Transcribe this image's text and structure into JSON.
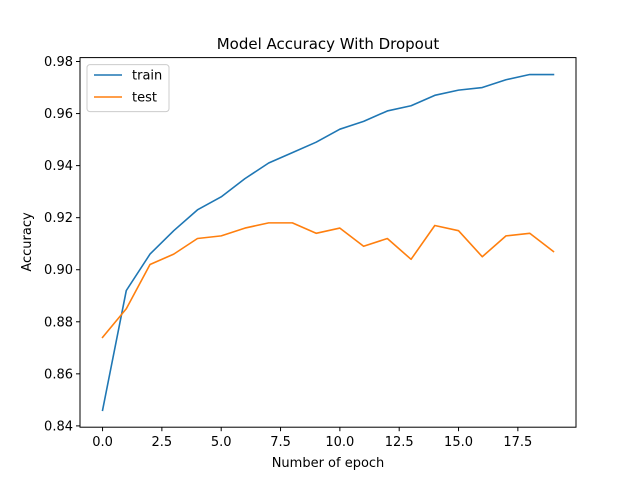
{
  "chart_data": {
    "type": "line",
    "title": "Model Accuracy With Dropout",
    "xlabel": "Number of epoch",
    "ylabel": "Accuracy",
    "xlim": [
      -0.95,
      19.95
    ],
    "ylim": [
      0.8395,
      0.9815
    ],
    "xticks": [
      0.0,
      2.5,
      5.0,
      7.5,
      10.0,
      12.5,
      15.0,
      17.5
    ],
    "xtick_labels": [
      "0.0",
      "2.5",
      "5.0",
      "7.5",
      "10.0",
      "12.5",
      "15.0",
      "17.5"
    ],
    "yticks": [
      0.84,
      0.86,
      0.88,
      0.9,
      0.92,
      0.94,
      0.96,
      0.98
    ],
    "ytick_labels": [
      "0.84",
      "0.86",
      "0.88",
      "0.90",
      "0.92",
      "0.94",
      "0.96",
      "0.98"
    ],
    "grid": false,
    "legend_position": "top-left",
    "x": [
      0,
      1,
      2,
      3,
      4,
      5,
      6,
      7,
      8,
      9,
      10,
      11,
      12,
      13,
      14,
      15,
      16,
      17,
      18,
      19
    ],
    "series": [
      {
        "name": "train",
        "color": "#1f77b4",
        "values": [
          0.846,
          0.892,
          0.906,
          0.915,
          0.923,
          0.928,
          0.935,
          0.941,
          0.945,
          0.949,
          0.954,
          0.957,
          0.961,
          0.963,
          0.967,
          0.969,
          0.97,
          0.973,
          0.975,
          0.975
        ]
      },
      {
        "name": "test",
        "color": "#ff7f0e",
        "values": [
          0.874,
          0.885,
          0.902,
          0.906,
          0.912,
          0.913,
          0.916,
          0.918,
          0.918,
          0.914,
          0.916,
          0.909,
          0.912,
          0.904,
          0.917,
          0.915,
          0.905,
          0.913,
          0.914,
          0.907
        ]
      }
    ]
  }
}
